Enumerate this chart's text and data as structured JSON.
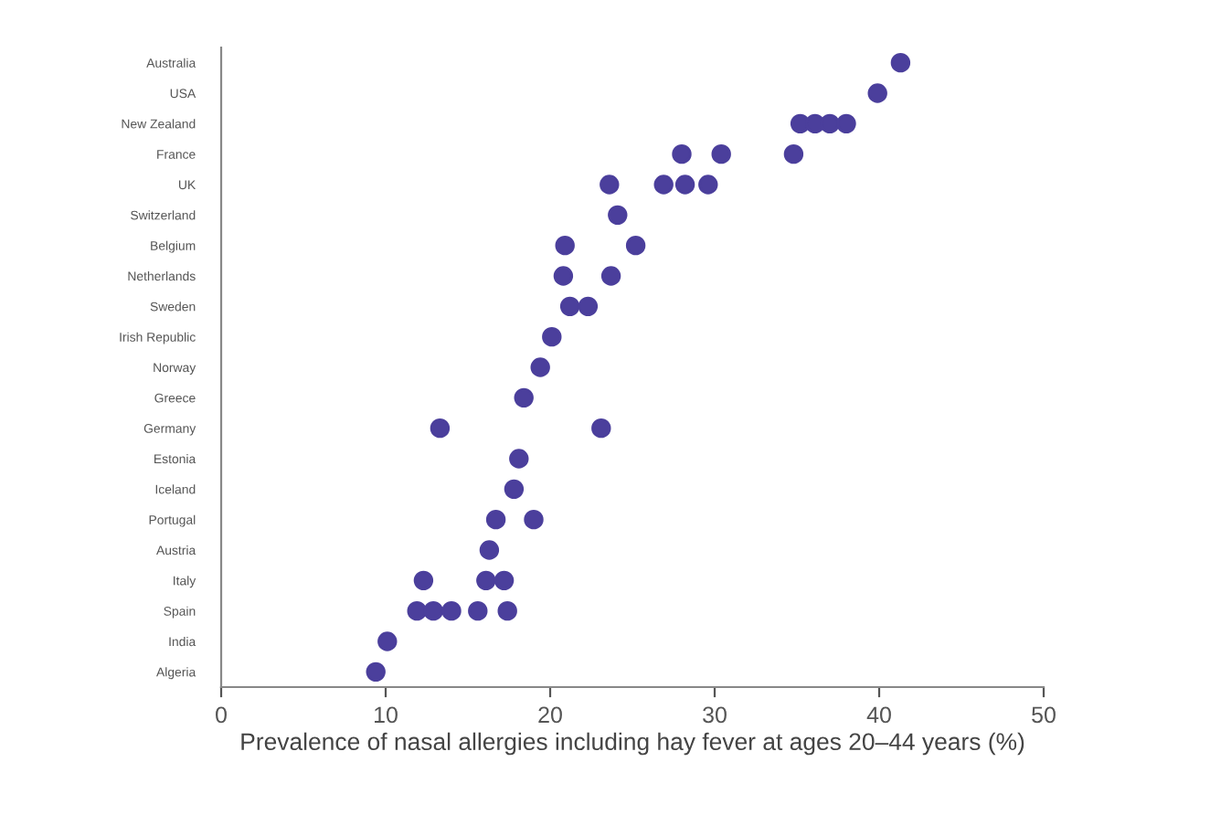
{
  "chart_data": {
    "type": "scatter",
    "orientation": "horizontal",
    "xlabel": "Prevalence of nasal allergies including hay fever at ages 20–44 years (%)",
    "categories": [
      "Australia",
      "USA",
      "New Zealand",
      "France",
      "UK",
      "Switzerland",
      "Belgium",
      "Netherlands",
      "Sweden",
      "Irish Republic",
      "Norway",
      "Greece",
      "Germany",
      "Estonia",
      "Iceland",
      "Portugal",
      "Austria",
      "Italy",
      "Spain",
      "India",
      "Algeria"
    ],
    "series": [
      {
        "color": "#4b3f9c",
        "x": [
          "Australia",
          "USA",
          "New Zealand",
          "New Zealand",
          "New Zealand",
          "New Zealand",
          "France",
          "France",
          "France",
          "UK",
          "UK",
          "UK",
          "UK",
          "Switzerland",
          "Belgium",
          "Belgium",
          "Netherlands",
          "Netherlands",
          "Sweden",
          "Sweden",
          "Irish Republic",
          "Norway",
          "Greece",
          "Germany",
          "Germany",
          "Estonia",
          "Iceland",
          "Portugal",
          "Portugal",
          "Austria",
          "Italy",
          "Italy",
          "Italy",
          "Spain",
          "Spain",
          "Spain",
          "Spain",
          "Spain",
          "India",
          "Algeria"
        ],
        "values": [
          41.3,
          39.9,
          35.2,
          36.1,
          37.0,
          38.0,
          28.0,
          30.4,
          34.8,
          23.6,
          26.9,
          28.2,
          29.6,
          24.1,
          20.9,
          25.2,
          20.8,
          23.7,
          21.2,
          22.3,
          20.1,
          19.4,
          18.4,
          13.3,
          23.1,
          18.1,
          17.8,
          16.7,
          19.0,
          16.3,
          12.3,
          16.1,
          17.2,
          11.9,
          12.9,
          14.0,
          15.6,
          17.4,
          10.1,
          9.4
        ]
      }
    ],
    "xlim": [
      0,
      50
    ],
    "xticks": [
      0,
      10,
      20,
      30,
      40,
      50
    ],
    "marker": "circle",
    "grid": false,
    "legend": false
  }
}
